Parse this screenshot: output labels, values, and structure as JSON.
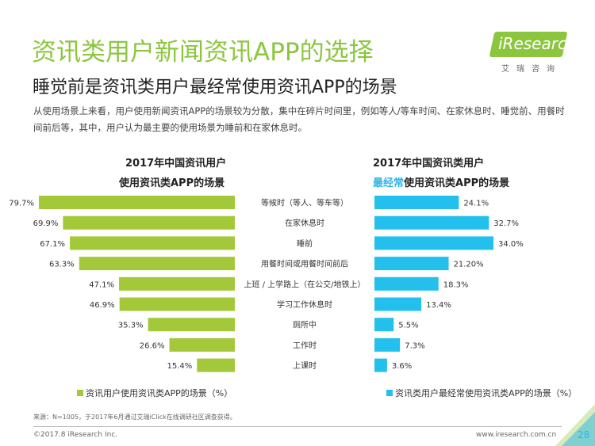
{
  "header": {
    "title": "资讯类用户新闻资讯APP的选择",
    "subtitle": "睡觉前是资讯类用户最经常使用资讯APP的场景",
    "description": "从使用场景上来看，用户使用新闻资讯APP的场景较为分散，集中在碎片时间里，例如等人/等车时间、在家休息时、睡觉前、用餐时间前后等，其中，用户认为最主要的使用场景为睡前和在家休息时。"
  },
  "logo": {
    "text": "iResearch",
    "sub": "艾瑞咨询"
  },
  "chart_data": [
    {
      "type": "bar",
      "orientation": "horizontal",
      "direction": "right-to-left",
      "title_line1": "2017年中国资讯用户",
      "title_line2": "使用资讯类APP的场景",
      "categories": [
        "等候时（等人、等车等）",
        "在家休息时",
        "睡前",
        "用餐时间或用餐时间前后",
        "上班 / 上学路上（在公交/地铁上）",
        "学习工作休息时",
        "厕所中",
        "工作时",
        "上课时"
      ],
      "values": [
        79.7,
        69.9,
        67.1,
        63.3,
        47.1,
        46.9,
        35.3,
        26.6,
        15.4
      ],
      "labels": [
        "79.7%",
        "69.9%",
        "67.1%",
        "63.3%",
        "47.1%",
        "46.9%",
        "35.3%",
        "26.6%",
        "15.4%"
      ],
      "color": "#a3c93a",
      "legend": "资讯用户使用资讯类APP的场景（%）",
      "legend_position": "bottom"
    },
    {
      "type": "bar",
      "orientation": "horizontal",
      "direction": "left-to-right",
      "title_line1": "2017年中国资讯类用户",
      "title_line2_highlight": "最经常",
      "title_line2_rest": "使用资讯类APP的场景",
      "categories": [
        "等候时（等人、等车等）",
        "在家休息时",
        "睡前",
        "用餐时间或用餐时间前后",
        "上班 / 上学路上（在公交/地铁上）",
        "学习工作休息时",
        "厕所中",
        "工作时",
        "上课时"
      ],
      "values": [
        24.1,
        32.7,
        34.0,
        21.2,
        18.3,
        13.4,
        5.5,
        7.3,
        3.6
      ],
      "labels": [
        "24.1%",
        "32.7%",
        "34.0%",
        "21.20%",
        "18.3%",
        "13.4%",
        "5.5%",
        "7.3%",
        "3.6%"
      ],
      "color": "#23c0ee",
      "legend": "资讯类用户最经常使用资讯类APP的场景（%）",
      "legend_position": "bottom"
    }
  ],
  "footer": {
    "source": "来源：N=1005，于2017年6月通过艾瑞iClick在线调研社区调查获得。",
    "copyright": "©2017.8 iResearch Inc.",
    "url": "www.iresearch.com.cn",
    "page": "28"
  },
  "colors": {
    "accent_green": "#8cc63f",
    "accent_blue": "#29b6e8"
  }
}
